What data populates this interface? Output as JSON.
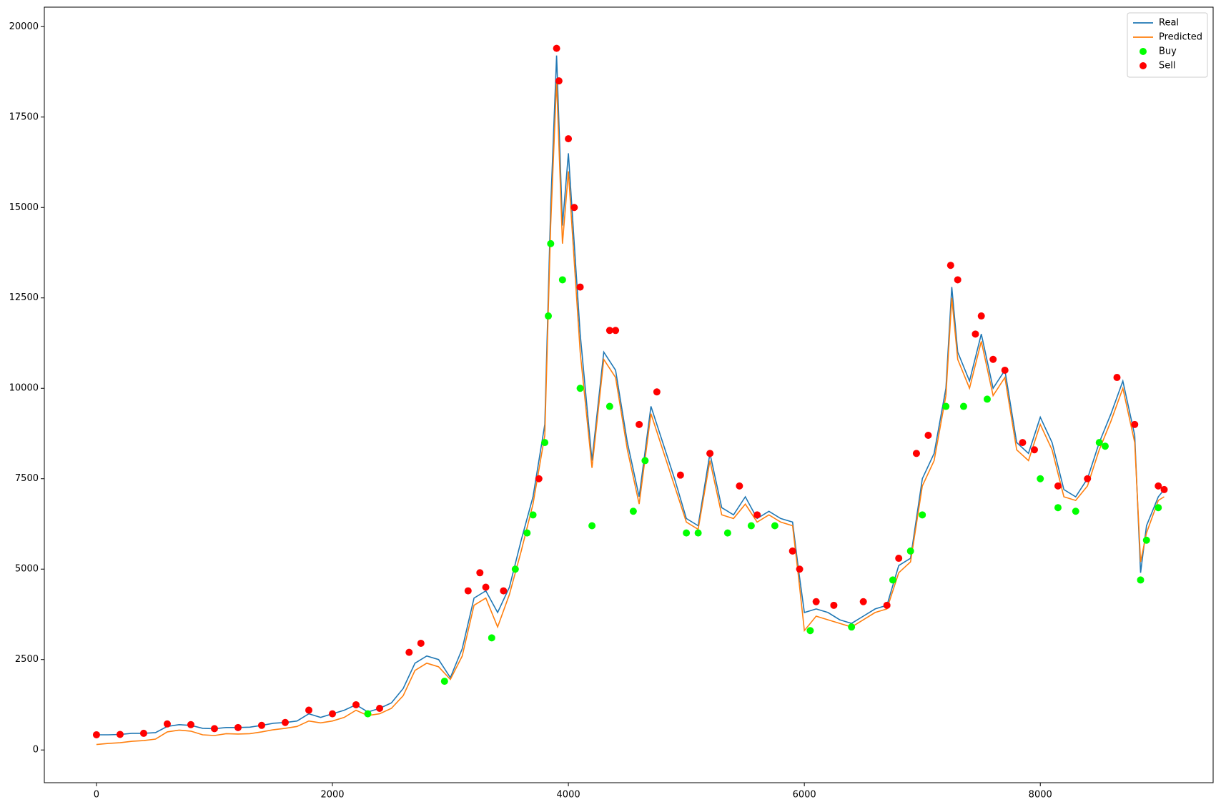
{
  "chart_data": {
    "type": "line",
    "xlim": [
      -442,
      9465
    ],
    "ylim": [
      -905,
      20539
    ],
    "xticks": [
      0,
      2000,
      4000,
      6000,
      8000
    ],
    "yticks": [
      0,
      2500,
      5000,
      7500,
      10000,
      12500,
      15000,
      17500,
      20000
    ],
    "legend": "upper right",
    "series": [
      {
        "name": "Real",
        "type": "line",
        "color": "#1f77b4",
        "x": [
          0,
          100,
          200,
          300,
          400,
          500,
          600,
          700,
          800,
          900,
          1000,
          1100,
          1200,
          1300,
          1400,
          1500,
          1600,
          1700,
          1800,
          1900,
          2000,
          2100,
          2200,
          2300,
          2400,
          2500,
          2600,
          2700,
          2800,
          2900,
          3000,
          3100,
          3200,
          3300,
          3400,
          3500,
          3600,
          3700,
          3800,
          3850,
          3900,
          3950,
          4000,
          4050,
          4100,
          4200,
          4300,
          4400,
          4500,
          4600,
          4700,
          4800,
          4900,
          5000,
          5100,
          5200,
          5300,
          5400,
          5500,
          5600,
          5700,
          5800,
          5900,
          5950,
          6000,
          6100,
          6200,
          6300,
          6400,
          6500,
          6600,
          6700,
          6800,
          6900,
          7000,
          7100,
          7200,
          7250,
          7300,
          7400,
          7500,
          7600,
          7700,
          7800,
          7900,
          8000,
          8100,
          8200,
          8300,
          8400,
          8500,
          8600,
          8700,
          8800,
          8850,
          8900,
          9000,
          9050
        ],
        "values": [
          420,
          420,
          430,
          460,
          460,
          480,
          650,
          700,
          680,
          600,
          590,
          620,
          620,
          630,
          680,
          740,
          760,
          800,
          1000,
          900,
          1000,
          1100,
          1250,
          1050,
          1150,
          1300,
          1700,
          2400,
          2600,
          2500,
          2000,
          2800,
          4200,
          4400,
          3800,
          4500,
          5800,
          7000,
          9000,
          15000,
          19200,
          14500,
          16500,
          14000,
          11500,
          8000,
          11000,
          10500,
          8500,
          7000,
          9500,
          8500,
          7500,
          6400,
          6200,
          8200,
          6700,
          6500,
          7000,
          6400,
          6600,
          6400,
          6300,
          5000,
          3800,
          3900,
          3800,
          3600,
          3500,
          3700,
          3900,
          4000,
          5100,
          5300,
          7500,
          8200,
          10000,
          12800,
          11000,
          10200,
          11500,
          10000,
          10500,
          8500,
          8200,
          9200,
          8500,
          7200,
          7000,
          7500,
          8500,
          9300,
          10200,
          8700,
          4900,
          6200,
          7000,
          7200
        ]
      },
      {
        "name": "Predicted",
        "type": "line",
        "color": "#ff7f0e",
        "x": [
          0,
          100,
          200,
          300,
          400,
          500,
          600,
          700,
          800,
          900,
          1000,
          1100,
          1200,
          1300,
          1400,
          1500,
          1600,
          1700,
          1800,
          1900,
          2000,
          2100,
          2200,
          2300,
          2400,
          2500,
          2600,
          2700,
          2800,
          2900,
          3000,
          3100,
          3200,
          3300,
          3400,
          3500,
          3600,
          3700,
          3800,
          3850,
          3900,
          3950,
          4000,
          4050,
          4100,
          4200,
          4300,
          4400,
          4500,
          4600,
          4700,
          4800,
          4900,
          5000,
          5100,
          5200,
          5300,
          5400,
          5500,
          5600,
          5700,
          5800,
          5900,
          5950,
          6000,
          6100,
          6200,
          6300,
          6400,
          6500,
          6600,
          6700,
          6800,
          6900,
          7000,
          7100,
          7200,
          7250,
          7300,
          7400,
          7500,
          7600,
          7700,
          7800,
          7900,
          8000,
          8100,
          8200,
          8300,
          8400,
          8500,
          8600,
          8700,
          8800,
          8850,
          8900,
          9000,
          9050
        ],
        "values": [
          150,
          180,
          200,
          240,
          260,
          300,
          500,
          550,
          520,
          420,
          400,
          450,
          440,
          450,
          500,
          560,
          600,
          650,
          800,
          750,
          800,
          900,
          1100,
          950,
          1000,
          1150,
          1500,
          2200,
          2400,
          2300,
          1950,
          2600,
          4000,
          4200,
          3400,
          4300,
          5500,
          6800,
          8700,
          14500,
          18500,
          14000,
          16000,
          13500,
          11000,
          7800,
          10800,
          10300,
          8300,
          6800,
          9300,
          8300,
          7300,
          6300,
          6100,
          8000,
          6500,
          6400,
          6800,
          6300,
          6500,
          6300,
          6200,
          4800,
          3300,
          3700,
          3600,
          3500,
          3400,
          3600,
          3800,
          3900,
          4900,
          5200,
          7300,
          8000,
          9800,
          12500,
          10800,
          10000,
          11300,
          9800,
          10300,
          8300,
          8000,
          9000,
          8300,
          7000,
          6900,
          7300,
          8300,
          9100,
          10000,
          8500,
          5200,
          6000,
          6900,
          7000
        ]
      },
      {
        "name": "Buy",
        "type": "scatter",
        "color": "#00ff00",
        "x": [
          2300,
          2950,
          3350,
          3550,
          3650,
          3700,
          3800,
          3830,
          3850,
          3950,
          4100,
          4200,
          4350,
          4550,
          4650,
          5000,
          5100,
          5350,
          5550,
          5750,
          6050,
          6400,
          6750,
          6900,
          7000,
          7200,
          7350,
          7550,
          8000,
          8150,
          8300,
          8500,
          8550,
          8850,
          8900,
          9000
        ],
        "values": [
          1000,
          1900,
          3100,
          5000,
          6000,
          6500,
          8500,
          12000,
          14000,
          13000,
          10000,
          6200,
          9500,
          6600,
          8000,
          6000,
          6000,
          6000,
          6200,
          6200,
          3300,
          3400,
          4700,
          5500,
          6500,
          9500,
          9500,
          9700,
          7500,
          6700,
          6600,
          8500,
          8400,
          4700,
          5800,
          6700
        ]
      },
      {
        "name": "Sell",
        "type": "scatter",
        "color": "#ff0000",
        "x": [
          0,
          200,
          400,
          600,
          800,
          1000,
          1200,
          1400,
          1600,
          1800,
          2000,
          2200,
          2400,
          2650,
          2750,
          3150,
          3250,
          3300,
          3450,
          3750,
          3900,
          3920,
          4000,
          4050,
          4100,
          4350,
          4400,
          4600,
          4750,
          4950,
          5200,
          5450,
          5600,
          5900,
          5960,
          6100,
          6250,
          6500,
          6700,
          6800,
          6950,
          7050,
          7240,
          7300,
          7450,
          7500,
          7600,
          7700,
          7850,
          7950,
          8150,
          8400,
          8650,
          8800,
          9000,
          9050
        ],
        "values": [
          420,
          430,
          460,
          720,
          700,
          590,
          620,
          680,
          760,
          1100,
          1000,
          1250,
          1150,
          2700,
          2950,
          4400,
          4900,
          4500,
          4400,
          7500,
          19400,
          18500,
          16900,
          15000,
          12800,
          11600,
          11600,
          9000,
          9900,
          7600,
          8200,
          7300,
          6500,
          5500,
          5000,
          4100,
          4000,
          4100,
          4000,
          5300,
          8200,
          8700,
          13400,
          13000,
          11500,
          12000,
          10800,
          10500,
          8500,
          8300,
          7300,
          7500,
          10300,
          9000,
          7300,
          7200
        ]
      }
    ]
  }
}
